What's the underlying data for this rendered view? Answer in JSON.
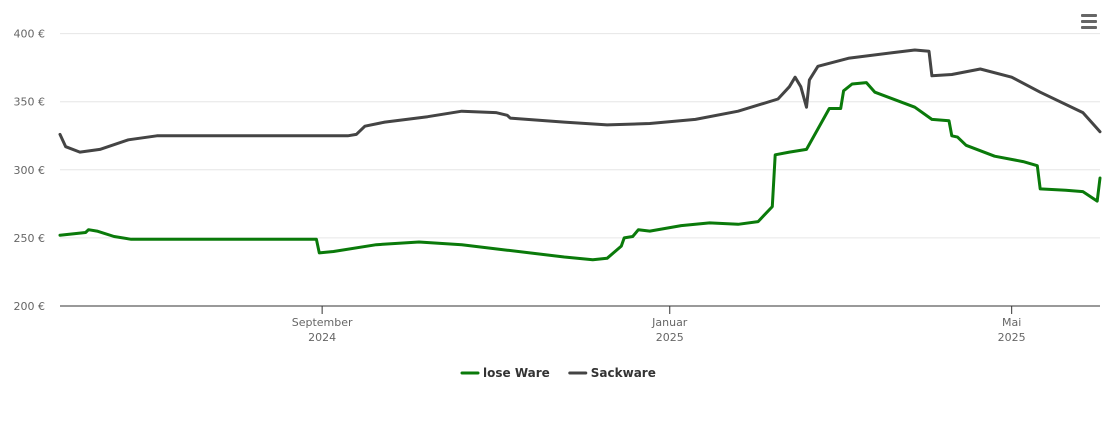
{
  "menu": {
    "icon": "hamburger-menu-icon"
  },
  "chart_data": {
    "type": "line",
    "title": "",
    "xlabel": "",
    "ylabel": "",
    "x_range": [
      "2024-06-01",
      "2025-06-01"
    ],
    "ylim": [
      200,
      410
    ],
    "y_ticks": [
      {
        "value": 200,
        "label": "200 €"
      },
      {
        "value": 250,
        "label": "250 €"
      },
      {
        "value": 300,
        "label": "300 €"
      },
      {
        "value": 350,
        "label": "350 €"
      },
      {
        "value": 400,
        "label": "400 €"
      }
    ],
    "x_ticks": [
      {
        "date": "2024-09-01",
        "line1": "September",
        "line2": "2024"
      },
      {
        "date": "2025-01-01",
        "line1": "Januar",
        "line2": "2025"
      },
      {
        "date": "2025-05-01",
        "line1": "Mai",
        "line2": "2025"
      }
    ],
    "grid": true,
    "legend_position": "bottom",
    "series": [
      {
        "name": "lose Ware",
        "color": "#0a7a0a",
        "points": [
          [
            "2024-06-01",
            252
          ],
          [
            "2024-06-10",
            254
          ],
          [
            "2024-06-11",
            256
          ],
          [
            "2024-06-14",
            255
          ],
          [
            "2024-06-20",
            251
          ],
          [
            "2024-06-26",
            249
          ],
          [
            "2024-07-15",
            249
          ],
          [
            "2024-08-15",
            249
          ],
          [
            "2024-08-30",
            249
          ],
          [
            "2024-08-31",
            239
          ],
          [
            "2024-09-05",
            240
          ],
          [
            "2024-09-20",
            245
          ],
          [
            "2024-10-05",
            247
          ],
          [
            "2024-10-20",
            245
          ],
          [
            "2024-11-05",
            241
          ],
          [
            "2024-11-25",
            236
          ],
          [
            "2024-12-05",
            234
          ],
          [
            "2024-12-10",
            235
          ],
          [
            "2024-12-15",
            244
          ],
          [
            "2024-12-16",
            250
          ],
          [
            "2024-12-19",
            251
          ],
          [
            "2024-12-21",
            256
          ],
          [
            "2024-12-25",
            255
          ],
          [
            "2025-01-05",
            259
          ],
          [
            "2025-01-15",
            261
          ],
          [
            "2025-01-25",
            260
          ],
          [
            "2025-02-01",
            262
          ],
          [
            "2025-02-06",
            273
          ],
          [
            "2025-02-07",
            311
          ],
          [
            "2025-02-12",
            313
          ],
          [
            "2025-02-18",
            315
          ],
          [
            "2025-02-26",
            345
          ],
          [
            "2025-03-02",
            345
          ],
          [
            "2025-03-03",
            358
          ],
          [
            "2025-03-06",
            363
          ],
          [
            "2025-03-11",
            364
          ],
          [
            "2025-03-14",
            357
          ],
          [
            "2025-03-28",
            346
          ],
          [
            "2025-04-03",
            337
          ],
          [
            "2025-04-09",
            336
          ],
          [
            "2025-04-10",
            325
          ],
          [
            "2025-04-12",
            324
          ],
          [
            "2025-04-15",
            318
          ],
          [
            "2025-04-25",
            310
          ],
          [
            "2025-05-05",
            306
          ],
          [
            "2025-05-10",
            303
          ],
          [
            "2025-05-11",
            286
          ],
          [
            "2025-05-20",
            285
          ],
          [
            "2025-05-26",
            284
          ],
          [
            "2025-05-31",
            277
          ],
          [
            "2025-06-01",
            294
          ]
        ]
      },
      {
        "name": "Sackware",
        "color": "#444444",
        "points": [
          [
            "2024-06-01",
            326
          ],
          [
            "2024-06-03",
            317
          ],
          [
            "2024-06-08",
            313
          ],
          [
            "2024-06-15",
            315
          ],
          [
            "2024-06-25",
            322
          ],
          [
            "2024-07-05",
            325
          ],
          [
            "2024-08-15",
            325
          ],
          [
            "2024-09-10",
            325
          ],
          [
            "2024-09-13",
            326
          ],
          [
            "2024-09-16",
            332
          ],
          [
            "2024-09-23",
            335
          ],
          [
            "2024-10-08",
            339
          ],
          [
            "2024-10-20",
            343
          ],
          [
            "2024-11-01",
            342
          ],
          [
            "2024-11-05",
            340
          ],
          [
            "2024-11-06",
            338
          ],
          [
            "2024-11-25",
            335
          ],
          [
            "2024-12-10",
            333
          ],
          [
            "2024-12-25",
            334
          ],
          [
            "2025-01-10",
            337
          ],
          [
            "2025-01-25",
            343
          ],
          [
            "2025-02-08",
            352
          ],
          [
            "2025-02-12",
            361
          ],
          [
            "2025-02-14",
            368
          ],
          [
            "2025-02-16",
            361
          ],
          [
            "2025-02-18",
            346
          ],
          [
            "2025-02-19",
            366
          ],
          [
            "2025-02-22",
            376
          ],
          [
            "2025-03-05",
            382
          ],
          [
            "2025-03-20",
            386
          ],
          [
            "2025-03-28",
            388
          ],
          [
            "2025-04-02",
            387
          ],
          [
            "2025-04-03",
            369
          ],
          [
            "2025-04-10",
            370
          ],
          [
            "2025-04-20",
            374
          ],
          [
            "2025-05-01",
            368
          ],
          [
            "2025-05-11",
            357
          ],
          [
            "2025-05-26",
            342
          ],
          [
            "2025-06-01",
            328
          ]
        ]
      }
    ]
  }
}
